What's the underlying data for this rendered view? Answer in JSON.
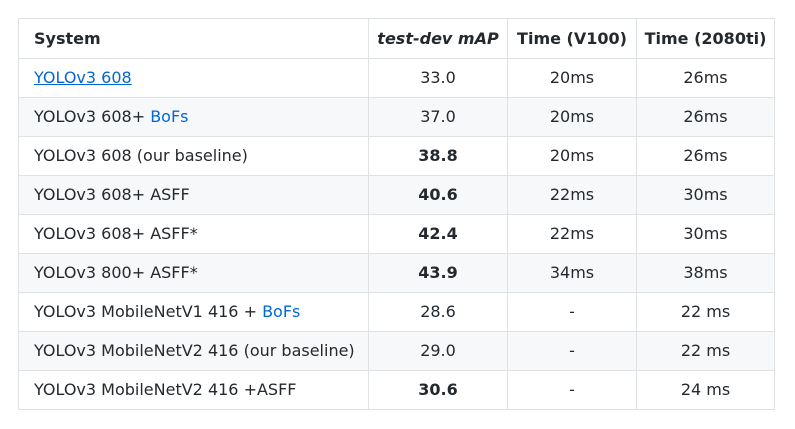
{
  "table": {
    "headers": {
      "system": "System",
      "map": "test-dev mAP",
      "time_v100": "Time (V100)",
      "time_2080ti": "Time (2080ti)"
    },
    "rows": [
      {
        "system": "YOLOv3 608",
        "system_link": "",
        "map": "33.0",
        "time_v100": "20ms",
        "time_2080ti": "26ms"
      },
      {
        "system": "YOLOv3 608+ ",
        "system_link": "BoFs",
        "map": "37.0",
        "time_v100": "20ms",
        "time_2080ti": "26ms"
      },
      {
        "system": "YOLOv3 608 (our baseline)",
        "system_link": "",
        "map": "38.8",
        "time_v100": "20ms",
        "time_2080ti": "26ms"
      },
      {
        "system": "YOLOv3 608+ ASFF",
        "system_link": "",
        "map": "40.6",
        "time_v100": "22ms",
        "time_2080ti": "30ms"
      },
      {
        "system": "YOLOv3 608+ ASFF*",
        "system_link": "",
        "map": "42.4",
        "time_v100": "22ms",
        "time_2080ti": "30ms"
      },
      {
        "system": "YOLOv3 800+ ASFF*",
        "system_link": "",
        "map": "43.9",
        "time_v100": "34ms",
        "time_2080ti": "38ms"
      },
      {
        "system": "YOLOv3 MobileNetV1 416 + ",
        "system_link": "BoFs",
        "map": "28.6",
        "time_v100": "-",
        "time_2080ti": "22 ms"
      },
      {
        "system": "YOLOv3 MobileNetV2 416 (our baseline)",
        "system_link": "",
        "map": "29.0",
        "time_v100": "-",
        "time_2080ti": "22 ms"
      },
      {
        "system": "YOLOv3 MobileNetV2 416 +ASFF",
        "system_link": "",
        "map": "30.6",
        "time_v100": "-",
        "time_2080ti": "24 ms"
      }
    ]
  },
  "colors": {
    "link": "#0366d6",
    "text": "#24292e",
    "border": "#dfe2e5",
    "stripe": "#f6f8fa"
  }
}
